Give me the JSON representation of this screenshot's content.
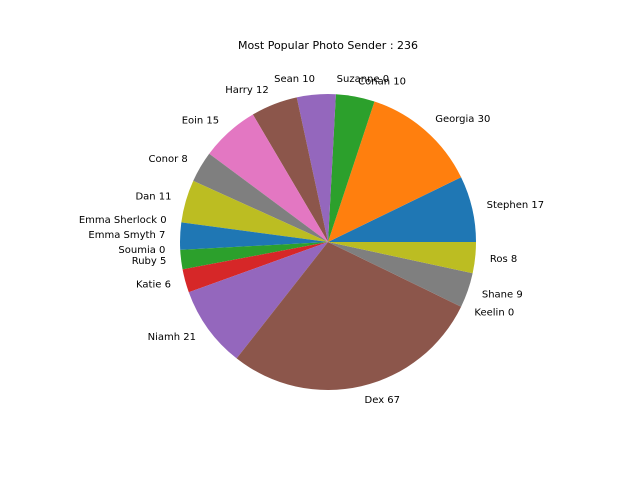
{
  "chart_data": {
    "type": "pie",
    "title": "Most Popular Photo Sender : 236",
    "start_angle_deg": 0,
    "direction": "counterclockwise",
    "slices": [
      {
        "label": "Stephen 17",
        "name": "Stephen",
        "value": 17,
        "color": "#1f77b4"
      },
      {
        "label": "Georgia 30",
        "name": "Georgia",
        "value": 30,
        "color": "#ff7f0e"
      },
      {
        "label": "Conan 10",
        "name": "Conan",
        "value": 10,
        "color": "#2ca02c"
      },
      {
        "label": "Suzanne 0",
        "name": "Suzanne",
        "value": 0,
        "color": "#d62728"
      },
      {
        "label": "Sean 10",
        "name": "Sean",
        "value": 10,
        "color": "#9467bd"
      },
      {
        "label": "Harry 12",
        "name": "Harry",
        "value": 12,
        "color": "#8c564b"
      },
      {
        "label": "Eoin 15",
        "name": "Eoin",
        "value": 15,
        "color": "#e377c2"
      },
      {
        "label": "Conor 8",
        "name": "Conor",
        "value": 8,
        "color": "#7f7f7f"
      },
      {
        "label": "Dan 11",
        "name": "Dan",
        "value": 11,
        "color": "#bcbd22"
      },
      {
        "label": "Emma Sherlock 0",
        "name": "Emma Sherlock",
        "value": 0,
        "color": "#17becf"
      },
      {
        "label": "Emma Smyth 7",
        "name": "Emma Smyth",
        "value": 7,
        "color": "#1f77b4"
      },
      {
        "label": "Soumia 0",
        "name": "Soumia",
        "value": 0,
        "color": "#ff7f0e"
      },
      {
        "label": "Ruby 5",
        "name": "Ruby",
        "value": 5,
        "color": "#2ca02c"
      },
      {
        "label": "Katie 6",
        "name": "Katie",
        "value": 6,
        "color": "#d62728"
      },
      {
        "label": "Niamh 21",
        "name": "Niamh",
        "value": 21,
        "color": "#9467bd"
      },
      {
        "label": "Dex 67",
        "name": "Dex",
        "value": 67,
        "color": "#8c564b"
      },
      {
        "label": "Keelin 0",
        "name": "Keelin",
        "value": 0,
        "color": "#e377c2"
      },
      {
        "label": "Shane 9",
        "name": "Shane",
        "value": 9,
        "color": "#7f7f7f"
      },
      {
        "label": "Ros 8",
        "name": "Ros",
        "value": 8,
        "color": "#bcbd22"
      }
    ]
  }
}
